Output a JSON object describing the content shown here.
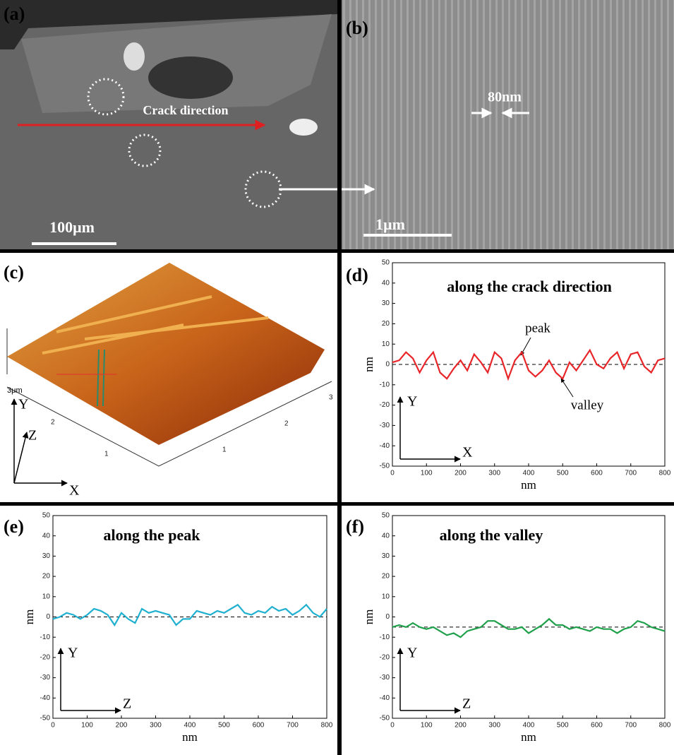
{
  "panels": {
    "a": {
      "label": "(a)",
      "annotation": "Crack direction",
      "scale_bar": "100μm"
    },
    "b": {
      "label": "(b)",
      "annotation": "80nm",
      "scale_bar": "1μm"
    },
    "c": {
      "label": "(c)",
      "corner_label": "3μm",
      "left_ticks": [
        "2",
        "1"
      ],
      "right_ticks": [
        "1",
        "2",
        "3"
      ],
      "axes": [
        "Y",
        "Z",
        "X"
      ]
    }
  },
  "chart_data": [
    {
      "type": "line",
      "panel_label": "(d)",
      "title": "along the crack direction",
      "x_label": "nm",
      "y_label": "nm",
      "axis_arrows": [
        "Y",
        "X"
      ],
      "annotations": [
        "peak",
        "valley"
      ],
      "reference_line": 0,
      "xlim": [
        0,
        800
      ],
      "xticks": [
        0,
        100,
        200,
        300,
        400,
        500,
        600,
        700,
        800
      ],
      "ylim": [
        -50,
        50
      ],
      "yticks": [
        -50,
        -40,
        -30,
        -20,
        -10,
        0,
        10,
        20,
        30,
        40,
        50
      ],
      "x": [
        0,
        20,
        40,
        60,
        80,
        100,
        120,
        140,
        160,
        180,
        200,
        220,
        240,
        260,
        280,
        300,
        320,
        340,
        360,
        380,
        400,
        420,
        440,
        460,
        480,
        500,
        520,
        540,
        560,
        580,
        600,
        620,
        640,
        660,
        680,
        700,
        720,
        740,
        760,
        780,
        800
      ],
      "series": [
        {
          "color": "#e8262a",
          "values": [
            1,
            2,
            6,
            3,
            -4,
            2,
            6,
            -4,
            -7,
            -2,
            2,
            -3,
            5,
            1,
            -4,
            6,
            3,
            -7,
            2,
            6,
            -3,
            -6,
            -3,
            2,
            -4,
            -7,
            1,
            -3,
            2,
            7,
            0,
            -2,
            3,
            6,
            -2,
            5,
            6,
            -1,
            -4,
            2,
            3
          ]
        }
      ]
    },
    {
      "type": "line",
      "panel_label": "(e)",
      "title": "along the peak",
      "x_label": "nm",
      "y_label": "nm",
      "axis_arrows": [
        "Y",
        "Z"
      ],
      "reference_line": 0,
      "xlim": [
        0,
        800
      ],
      "xticks": [
        0,
        100,
        200,
        300,
        400,
        500,
        600,
        700,
        800
      ],
      "ylim": [
        -50,
        50
      ],
      "yticks": [
        -50,
        -40,
        -30,
        -20,
        -10,
        0,
        10,
        20,
        30,
        40,
        50
      ],
      "x": [
        0,
        20,
        40,
        60,
        80,
        100,
        120,
        140,
        160,
        180,
        200,
        220,
        240,
        260,
        280,
        300,
        320,
        340,
        360,
        380,
        400,
        420,
        440,
        460,
        480,
        500,
        520,
        540,
        560,
        580,
        600,
        620,
        640,
        660,
        680,
        700,
        720,
        740,
        760,
        780,
        800
      ],
      "series": [
        {
          "color": "#1fb0d0",
          "values": [
            -1,
            0,
            2,
            1,
            -1,
            1,
            4,
            3,
            1,
            -4,
            2,
            -1,
            -3,
            4,
            2,
            3,
            2,
            1,
            -4,
            -1,
            -1,
            3,
            2,
            1,
            3,
            2,
            4,
            6,
            2,
            1,
            3,
            2,
            5,
            3,
            4,
            1,
            3,
            6,
            2,
            0,
            4
          ]
        }
      ]
    },
    {
      "type": "line",
      "panel_label": "(f)",
      "title": "along the valley",
      "x_label": "nm",
      "y_label": "nm",
      "axis_arrows": [
        "Y",
        "Z"
      ],
      "reference_line": -5,
      "xlim": [
        0,
        800
      ],
      "xticks": [
        0,
        100,
        200,
        300,
        400,
        500,
        600,
        700,
        800
      ],
      "ylim": [
        -50,
        50
      ],
      "yticks": [
        -50,
        -40,
        -30,
        -20,
        -10,
        0,
        10,
        20,
        30,
        40,
        50
      ],
      "x": [
        0,
        20,
        40,
        60,
        80,
        100,
        120,
        140,
        160,
        180,
        200,
        220,
        240,
        260,
        280,
        300,
        320,
        340,
        360,
        380,
        400,
        420,
        440,
        460,
        480,
        500,
        520,
        540,
        560,
        580,
        600,
        620,
        640,
        660,
        680,
        700,
        720,
        740,
        760,
        780,
        800
      ],
      "series": [
        {
          "color": "#1fa04a",
          "values": [
            -5,
            -4,
            -5,
            -3,
            -5,
            -6,
            -5,
            -7,
            -9,
            -8,
            -10,
            -7,
            -6,
            -5,
            -2,
            -2,
            -4,
            -6,
            -6,
            -5,
            -8,
            -6,
            -4,
            -1,
            -4,
            -4,
            -6,
            -5,
            -6,
            -7,
            -5,
            -6,
            -6,
            -8,
            -6,
            -5,
            -2,
            -3,
            -5,
            -6,
            -7
          ]
        }
      ]
    }
  ]
}
